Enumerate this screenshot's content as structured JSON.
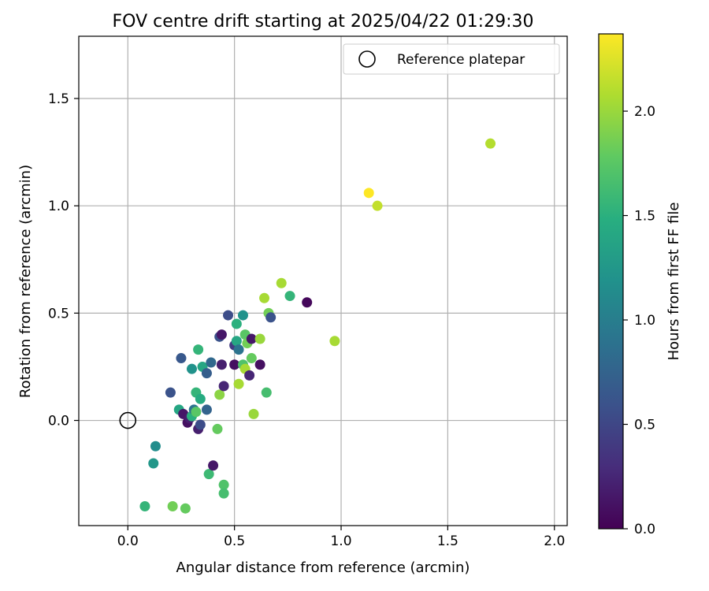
{
  "chart_data": {
    "type": "scatter",
    "title": "FOV centre drift starting at 2025/04/22 01:29:30",
    "xlabel": "Angular distance from reference (arcmin)",
    "ylabel": "Rotation from reference (arcmin)",
    "xlim": [
      -0.23,
      2.06
    ],
    "ylim": [
      -0.49,
      1.79
    ],
    "xticks": [
      {
        "value": 0.0,
        "label": "0.0"
      },
      {
        "value": 0.5,
        "label": "0.5"
      },
      {
        "value": 1.0,
        "label": "1.0"
      },
      {
        "value": 1.5,
        "label": "1.5"
      },
      {
        "value": 2.0,
        "label": "2.0"
      }
    ],
    "yticks": [
      {
        "value": 0.0,
        "label": "0.0"
      },
      {
        "value": 0.5,
        "label": "0.5"
      },
      {
        "value": 1.0,
        "label": "1.0"
      },
      {
        "value": 1.5,
        "label": "1.5"
      }
    ],
    "grid": true,
    "legend": {
      "placement": "top-right",
      "entries": [
        {
          "label": "Reference platepar",
          "marker": "open-circle",
          "x": 0.0,
          "y": 0.0
        }
      ]
    },
    "colorbar": {
      "label": "Hours from first FF file",
      "colormap": "viridis",
      "range": [
        0.0,
        2.37
      ],
      "ticks": [
        {
          "value": 0.0,
          "label": "0.0"
        },
        {
          "value": 0.5,
          "label": "0.5"
        },
        {
          "value": 1.0,
          "label": "1.0"
        },
        {
          "value": 1.5,
          "label": "1.5"
        },
        {
          "value": 2.0,
          "label": "2.0"
        }
      ]
    },
    "points": [
      {
        "x": 0.08,
        "y": -0.4,
        "h": 1.55
      },
      {
        "x": 0.12,
        "y": -0.2,
        "h": 1.25
      },
      {
        "x": 0.13,
        "y": -0.12,
        "h": 1.15
      },
      {
        "x": 0.2,
        "y": 0.13,
        "h": 0.6
      },
      {
        "x": 0.21,
        "y": -0.4,
        "h": 1.85
      },
      {
        "x": 0.24,
        "y": 0.05,
        "h": 1.4
      },
      {
        "x": 0.25,
        "y": 0.29,
        "h": 0.65
      },
      {
        "x": 0.26,
        "y": 0.03,
        "h": 0.15
      },
      {
        "x": 0.27,
        "y": -0.41,
        "h": 1.8
      },
      {
        "x": 0.28,
        "y": -0.01,
        "h": 0.1
      },
      {
        "x": 0.29,
        "y": 0.01,
        "h": 0.2
      },
      {
        "x": 0.3,
        "y": 0.24,
        "h": 1.2
      },
      {
        "x": 0.3,
        "y": 0.02,
        "h": 1.5
      },
      {
        "x": 0.31,
        "y": 0.05,
        "h": 0.9
      },
      {
        "x": 0.32,
        "y": 0.13,
        "h": 1.55
      },
      {
        "x": 0.32,
        "y": 0.04,
        "h": 1.75
      },
      {
        "x": 0.33,
        "y": 0.33,
        "h": 1.55
      },
      {
        "x": 0.33,
        "y": -0.04,
        "h": 0.2
      },
      {
        "x": 0.34,
        "y": 0.1,
        "h": 1.45
      },
      {
        "x": 0.34,
        "y": -0.02,
        "h": 0.55
      },
      {
        "x": 0.35,
        "y": 0.25,
        "h": 1.4
      },
      {
        "x": 0.37,
        "y": 0.22,
        "h": 0.7
      },
      {
        "x": 0.37,
        "y": 0.05,
        "h": 0.75
      },
      {
        "x": 0.38,
        "y": -0.25,
        "h": 1.6
      },
      {
        "x": 0.39,
        "y": 0.27,
        "h": 0.8
      },
      {
        "x": 0.4,
        "y": -0.21,
        "h": 0.15
      },
      {
        "x": 0.42,
        "y": -0.04,
        "h": 1.8
      },
      {
        "x": 0.43,
        "y": 0.39,
        "h": 0.6
      },
      {
        "x": 0.43,
        "y": 0.12,
        "h": 1.95
      },
      {
        "x": 0.44,
        "y": 0.26,
        "h": 0.2
      },
      {
        "x": 0.44,
        "y": 0.4,
        "h": 0.15
      },
      {
        "x": 0.45,
        "y": 0.16,
        "h": 0.25
      },
      {
        "x": 0.45,
        "y": -0.3,
        "h": 1.7
      },
      {
        "x": 0.45,
        "y": -0.34,
        "h": 1.65
      },
      {
        "x": 0.47,
        "y": 0.49,
        "h": 0.55
      },
      {
        "x": 0.5,
        "y": 0.26,
        "h": 0.1
      },
      {
        "x": 0.5,
        "y": 0.35,
        "h": 0.4
      },
      {
        "x": 0.51,
        "y": 0.45,
        "h": 1.5
      },
      {
        "x": 0.51,
        "y": 0.37,
        "h": 1.4
      },
      {
        "x": 0.52,
        "y": 0.33,
        "h": 0.9
      },
      {
        "x": 0.52,
        "y": 0.17,
        "h": 2.05
      },
      {
        "x": 0.54,
        "y": 0.26,
        "h": 1.7
      },
      {
        "x": 0.54,
        "y": 0.49,
        "h": 1.2
      },
      {
        "x": 0.55,
        "y": 0.24,
        "h": 2.05
      },
      {
        "x": 0.55,
        "y": 0.4,
        "h": 1.75
      },
      {
        "x": 0.56,
        "y": 0.36,
        "h": 1.85
      },
      {
        "x": 0.57,
        "y": 0.21,
        "h": 0.25
      },
      {
        "x": 0.58,
        "y": 0.29,
        "h": 1.8
      },
      {
        "x": 0.58,
        "y": 0.38,
        "h": 0.15
      },
      {
        "x": 0.59,
        "y": 0.03,
        "h": 2.0
      },
      {
        "x": 0.62,
        "y": 0.38,
        "h": 2.0
      },
      {
        "x": 0.62,
        "y": 0.26,
        "h": 0.1
      },
      {
        "x": 0.64,
        "y": 0.57,
        "h": 2.05
      },
      {
        "x": 0.65,
        "y": 0.13,
        "h": 1.65
      },
      {
        "x": 0.66,
        "y": 0.5,
        "h": 1.85
      },
      {
        "x": 0.67,
        "y": 0.48,
        "h": 0.6
      },
      {
        "x": 0.72,
        "y": 0.64,
        "h": 2.05
      },
      {
        "x": 0.76,
        "y": 0.58,
        "h": 1.55
      },
      {
        "x": 0.84,
        "y": 0.55,
        "h": 0.05
      },
      {
        "x": 0.97,
        "y": 0.37,
        "h": 2.05
      },
      {
        "x": 1.13,
        "y": 1.06,
        "h": 2.37
      },
      {
        "x": 1.17,
        "y": 1.0,
        "h": 2.15
      },
      {
        "x": 1.7,
        "y": 1.29,
        "h": 2.1
      }
    ]
  }
}
